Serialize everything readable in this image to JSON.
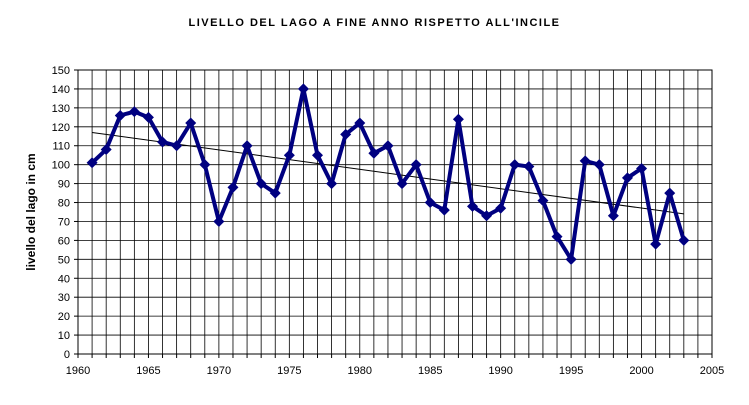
{
  "chart_data": {
    "type": "line",
    "title": "LIVELLO DEL LAGO A FINE ANNO RISPETTO ALL'INCILE",
    "xlabel": "",
    "ylabel": "livello del lago in cm",
    "xlim": [
      1960,
      2005
    ],
    "ylim": [
      0,
      150
    ],
    "x_ticks": [
      "1960",
      "1965",
      "1970",
      "1975",
      "1980",
      "1985",
      "1990",
      "1995",
      "2000",
      "2005"
    ],
    "y_ticks": [
      "0",
      "10",
      "20",
      "30",
      "40",
      "50",
      "60",
      "70",
      "80",
      "90",
      "100",
      "110",
      "120",
      "130",
      "140",
      "150"
    ],
    "grid": true,
    "legend": "none",
    "series": [
      {
        "color": "#000080",
        "marker": "diamond",
        "x": [
          1961,
          1962,
          1963,
          1964,
          1965,
          1966,
          1967,
          1968,
          1969,
          1970,
          1971,
          1972,
          1973,
          1974,
          1975,
          1976,
          1977,
          1978,
          1979,
          1980,
          1981,
          1982,
          1983,
          1984,
          1985,
          1986,
          1987,
          1988,
          1989,
          1990,
          1991,
          1992,
          1993,
          1994,
          1995,
          1996,
          1997,
          1998,
          1999,
          2000,
          2001,
          2002,
          2003
        ],
        "y": [
          101,
          108,
          126,
          128,
          125,
          112,
          110,
          122,
          100,
          70,
          88,
          110,
          90,
          85,
          105,
          140,
          105,
          90,
          116,
          122,
          106,
          110,
          90,
          100,
          80,
          76,
          124,
          78,
          73,
          77,
          100,
          99,
          81,
          62,
          50,
          102,
          100,
          73,
          93,
          98,
          58,
          85,
          60
        ]
      }
    ],
    "trendline": {
      "color": "#000000",
      "x": [
        1961,
        2003
      ],
      "y": [
        117,
        74
      ]
    }
  }
}
